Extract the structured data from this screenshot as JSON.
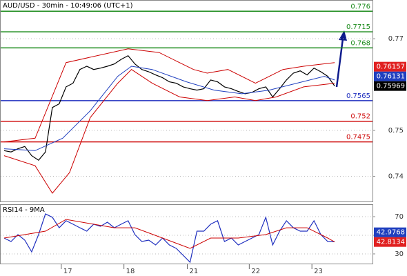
{
  "chart_data": [
    {
      "type": "line",
      "title": "AUD/USD - 30min - 10:49:06 (UTC+1)",
      "xlim": [
        -0.5,
        53.5
      ],
      "xticks": [
        {
          "value": 8.3,
          "label": "17"
        },
        {
          "value": 17.4,
          "label": "18"
        },
        {
          "value": 26.6,
          "label": "21"
        },
        {
          "value": 35.6,
          "label": "22"
        },
        {
          "value": 44.7,
          "label": "23"
        }
      ],
      "ylim": [
        0.7345,
        0.7783
      ],
      "yticks": [
        0.74,
        0.75,
        0.77
      ],
      "grid": true,
      "series": [
        {
          "color": "#000000",
          "x": [
            0,
            1,
            2,
            3,
            4,
            5,
            6,
            7,
            8,
            9,
            10,
            11,
            12,
            13,
            14,
            15,
            16,
            17,
            18,
            19,
            20,
            21,
            22,
            23,
            24,
            25,
            26,
            27,
            28,
            29,
            30,
            31,
            32,
            33,
            34,
            35,
            36,
            37,
            38,
            39,
            40,
            41,
            42,
            43,
            44,
            45,
            46,
            47,
            48
          ],
          "values": [
            0.7456,
            0.7453,
            0.746,
            0.7465,
            0.7445,
            0.7435,
            0.7453,
            0.755,
            0.7558,
            0.7595,
            0.7603,
            0.7633,
            0.764,
            0.7633,
            0.7636,
            0.764,
            0.7645,
            0.7655,
            0.7663,
            0.7645,
            0.7633,
            0.7628,
            0.7621,
            0.7615,
            0.7606,
            0.7603,
            0.7595,
            0.7591,
            0.7588,
            0.7591,
            0.761,
            0.7606,
            0.7595,
            0.7591,
            0.7585,
            0.758,
            0.7583,
            0.7591,
            0.7595,
            0.7573,
            0.7591,
            0.761,
            0.7625,
            0.763,
            0.7621,
            0.7636,
            0.7628,
            0.7618,
            0.7597
          ]
        },
        {
          "color": "#cc0000",
          "x": [
            0,
            4.5,
            9,
            18,
            22.5,
            27.5,
            29.5,
            32.5,
            36.5,
            40.5,
            43.5,
            48
          ],
          "values": [
            0.7475,
            0.7483,
            0.7648,
            0.7678,
            0.767,
            0.7633,
            0.7625,
            0.7633,
            0.7603,
            0.7633,
            0.764,
            0.7648
          ]
        },
        {
          "color": "#cc0000",
          "x": [
            0,
            4.5,
            7,
            9.5,
            12.5,
            16.5,
            18.5,
            21.5,
            25.5,
            29.5,
            33.5,
            36.5,
            39.5,
            43.5,
            48
          ],
          "values": [
            0.7445,
            0.7423,
            0.7363,
            0.7408,
            0.7528,
            0.7603,
            0.7633,
            0.7603,
            0.7573,
            0.7565,
            0.7573,
            0.7565,
            0.7573,
            0.7595,
            0.7603
          ]
        },
        {
          "color": "#1f3fbf",
          "x": [
            0,
            4.5,
            8.5,
            12.5,
            16.5,
            18.5,
            21.5,
            26.5,
            30.5,
            34.5,
            38.5,
            42.5,
            46.5,
            48
          ],
          "values": [
            0.746,
            0.7456,
            0.7483,
            0.7543,
            0.7618,
            0.764,
            0.7633,
            0.7606,
            0.7588,
            0.758,
            0.7588,
            0.7603,
            0.7618,
            0.761
          ]
        }
      ],
      "levels": [
        {
          "value": 0.776,
          "color": "#1a8a1a"
        },
        {
          "value": 0.7715,
          "color": "#1a8a1a"
        },
        {
          "value": 0.768,
          "color": "#1a8a1a"
        },
        {
          "value": 0.7565,
          "color": "#1f2fbf"
        },
        {
          "value": 0.752,
          "color": "#d01010"
        },
        {
          "value": 0.7475,
          "color": "#d01010"
        }
      ],
      "price_labels": [
        {
          "value": 0.76157,
          "color": "#e02020"
        },
        {
          "value": 0.76131,
          "color": "#1f3fbf"
        },
        {
          "value": 0.75969,
          "color": "#000000"
        }
      ]
    },
    {
      "type": "line",
      "title": "RSI14 - 9MA",
      "xlim": [
        -0.5,
        53.5
      ],
      "ylim": [
        19.6,
        82.6
      ],
      "yticks": [
        30,
        50,
        70
      ],
      "grid": true,
      "series": [
        {
          "color": "#1f2fbf",
          "x": [
            0,
            1,
            2,
            3,
            4,
            5,
            6,
            7,
            8,
            9,
            10,
            11,
            12,
            13,
            14,
            15,
            16,
            17,
            18,
            19,
            20,
            21,
            22,
            23,
            24,
            25,
            26,
            27,
            28,
            29,
            30,
            31,
            32,
            33,
            34,
            35,
            36,
            37,
            38,
            39,
            40,
            41,
            42,
            43,
            44,
            45,
            46,
            47,
            48
          ],
          "values": [
            47.0,
            43.3,
            50.7,
            44.8,
            32.2,
            50.7,
            73.0,
            69.3,
            58.1,
            65.6,
            61.9,
            58.1,
            54.4,
            61.9,
            59.6,
            64.1,
            58.1,
            61.9,
            65.6,
            50.7,
            43.3,
            44.8,
            39.6,
            47.0,
            39.6,
            35.9,
            28.5,
            21.1,
            54.4,
            54.4,
            61.9,
            65.6,
            43.3,
            47.0,
            39.6,
            43.3,
            47.0,
            50.7,
            69.3,
            39.6,
            54.4,
            65.6,
            58.1,
            54.4,
            54.4,
            65.6,
            50.7,
            43.3,
            43.0
          ]
        },
        {
          "color": "#cc0000",
          "x": [
            0,
            6,
            9,
            16,
            19,
            23,
            27,
            30,
            34,
            38,
            41,
            44,
            47,
            48
          ],
          "values": [
            47.0,
            54.4,
            67.0,
            58.1,
            58.1,
            47.0,
            35.9,
            47.0,
            47.0,
            50.7,
            58.1,
            58.1,
            47.0,
            42.8
          ]
        }
      ],
      "price_labels": [
        {
          "value": 42.9768,
          "color": "#1f3fbf"
        },
        {
          "value": 42.8134,
          "color": "#e02020"
        }
      ]
    }
  ]
}
